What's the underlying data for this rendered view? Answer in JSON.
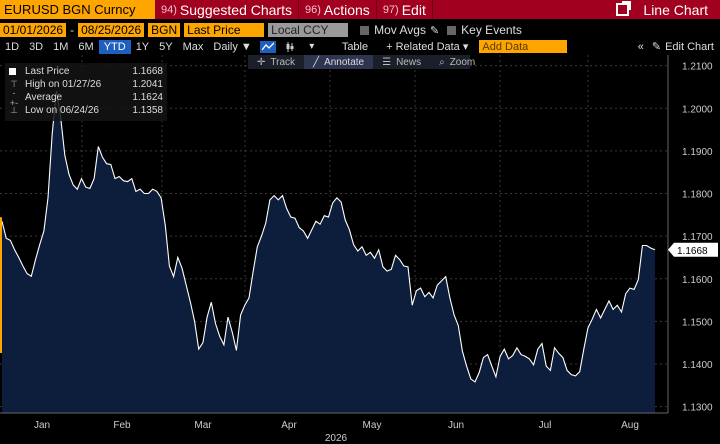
{
  "topbar": {
    "security": "EURUSD BGN Curncy",
    "menus": [
      {
        "num": "94)",
        "label": "Suggested Charts"
      },
      {
        "num": "96)",
        "label": "Actions"
      },
      {
        "num": "97)",
        "label": "Edit"
      }
    ],
    "right_label": "Line Chart"
  },
  "row2": {
    "start_date": "01/01/2026",
    "end_date": "08/25/2026",
    "source": "BGN",
    "field": "Last Price",
    "currency": "Local CCY",
    "mov_avgs": "Mov Avgs",
    "key_events": "Key Events"
  },
  "row3": {
    "ranges": [
      "1D",
      "3D",
      "1M",
      "6M",
      "YTD",
      "1Y",
      "5Y",
      "Max"
    ],
    "active_range": "YTD",
    "period": "Daily",
    "table_label": "Table",
    "related_data": "Related Data",
    "add_data_placeholder": "Add Data",
    "edit_chart": "Edit Chart"
  },
  "toolstrip": {
    "items": [
      "Track",
      "Annotate",
      "News",
      "Zoom"
    ],
    "active": "Annotate"
  },
  "legend": {
    "rows": [
      {
        "label": "Last Price",
        "value": "1.1668",
        "mark": "square"
      },
      {
        "label": "High on 01/27/26",
        "value": "1.2041",
        "mark": "high"
      },
      {
        "label": "Average",
        "value": "1.1624",
        "mark": "avg"
      },
      {
        "label": "Low on 06/24/26",
        "value": "1.1358",
        "mark": "low"
      }
    ]
  },
  "colors": {
    "accent_red": "#a1001f",
    "field_orange": "#ffa500",
    "active_blue": "#1f5fbf",
    "area_fill": "#0d1e3d",
    "line": "#ffffff",
    "last_price_tag": "#ffffff"
  },
  "chart_data": {
    "type": "area",
    "title": "",
    "xlabel": "2026",
    "ylabel": "",
    "ylim": [
      1.1285,
      1.2125
    ],
    "yticks": [
      "1.2100",
      "1.2000",
      "1.1900",
      "1.1800",
      "1.1700",
      "1.1600",
      "1.1500",
      "1.1400",
      "1.1300"
    ],
    "xtick_labels": [
      "Jan",
      "Feb",
      "Mar",
      "Apr",
      "May",
      "Jun",
      "Jul",
      "Aug"
    ],
    "last_value_label": "1.1668",
    "grid": true,
    "series": [
      {
        "values": [
          1.1735,
          1.1695,
          1.169,
          1.1668,
          1.165,
          1.163,
          1.1612,
          1.1606,
          1.1645,
          1.168,
          1.1712,
          1.179,
          1.194,
          1.2041,
          1.198,
          1.189,
          1.1845,
          1.182,
          1.181,
          1.1835,
          1.1815,
          1.1812,
          1.1835,
          1.191,
          1.1885,
          1.187,
          1.1868,
          1.1835,
          1.184,
          1.183,
          1.1828,
          1.1835,
          1.1805,
          1.181,
          1.18,
          1.18,
          1.181,
          1.1805,
          1.179,
          1.1725,
          1.163,
          1.1605,
          1.165,
          1.1625,
          1.1585,
          1.1545,
          1.15,
          1.1435,
          1.145,
          1.151,
          1.1545,
          1.1495,
          1.1465,
          1.1445,
          1.151,
          1.1475,
          1.1432,
          1.1515,
          1.1538,
          1.1555,
          1.1618,
          1.1675,
          1.17,
          1.173,
          1.1785,
          1.1795,
          1.1785,
          1.1795,
          1.1765,
          1.1745,
          1.1742,
          1.172,
          1.1712,
          1.1695,
          1.1715,
          1.1735,
          1.1728,
          1.1748,
          1.1745,
          1.1778,
          1.179,
          1.178,
          1.1738,
          1.1715,
          1.168,
          1.1665,
          1.1675,
          1.1655,
          1.1662,
          1.1648,
          1.1668,
          1.1628,
          1.1618,
          1.1622,
          1.1655,
          1.1645,
          1.163,
          1.1628,
          1.1538,
          1.1572,
          1.1578,
          1.1558,
          1.1568,
          1.1555,
          1.1585,
          1.1595,
          1.1605,
          1.1555,
          1.1515,
          1.149,
          1.143,
          1.1395,
          1.1365,
          1.1358,
          1.138,
          1.1415,
          1.1422,
          1.1395,
          1.137,
          1.1418,
          1.1435,
          1.1412,
          1.142,
          1.1438,
          1.1422,
          1.1418,
          1.1412,
          1.1398,
          1.1435,
          1.1448,
          1.1395,
          1.1385,
          1.1438,
          1.1425,
          1.1415,
          1.1385,
          1.1375,
          1.1372,
          1.1382,
          1.1435,
          1.1485,
          1.1505,
          1.1528,
          1.1508,
          1.1528,
          1.1548,
          1.1528,
          1.1538,
          1.1522,
          1.1565,
          1.1578,
          1.1575,
          1.1598,
          1.1678,
          1.1678,
          1.1672,
          1.1668
        ]
      }
    ]
  }
}
